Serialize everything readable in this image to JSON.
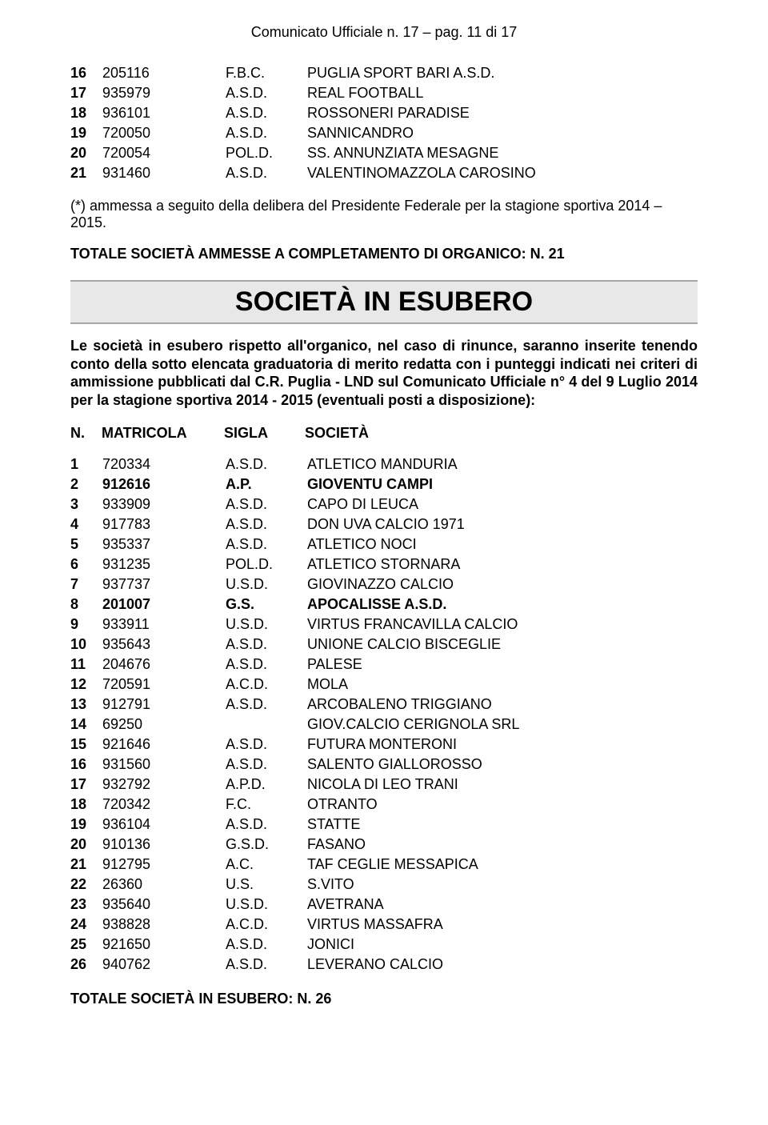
{
  "page_header": "Comunicato Ufficiale n. 17 – pag. 11 di 17",
  "top_rows": [
    {
      "n": "16",
      "mat": "205116",
      "sig": "F.B.C.",
      "soc": "PUGLIA SPORT BARI A.S.D."
    },
    {
      "n": "17",
      "mat": "935979",
      "sig": "A.S.D.",
      "soc": "REAL FOOTBALL"
    },
    {
      "n": "18",
      "mat": "936101",
      "sig": "A.S.D.",
      "soc": "ROSSONERI PARADISE"
    },
    {
      "n": "19",
      "mat": "720050",
      "sig": "A.S.D.",
      "soc": "SANNICANDRO"
    },
    {
      "n": "20",
      "mat": "720054",
      "sig": "POL.D.",
      "soc": "SS. ANNUNZIATA MESAGNE"
    },
    {
      "n": "21",
      "mat": "931460",
      "sig": "A.S.D.",
      "soc": "VALENTINOMAZZOLA CAROSINO"
    }
  ],
  "note": "(*) ammessa a seguito della delibera del Presidente Federale per la stagione sportiva 2014 – 2015.",
  "totale1": "TOTALE SOCIETÀ AMMESSE A COMPLETAMENTO DI ORGANICO: N. 21",
  "section_title": "SOCIETÀ IN ESUBERO",
  "intro": "Le società in esubero rispetto all'organico, nel caso di rinunce, saranno inserite tenendo conto della sotto elencata graduatoria di merito redatta con i punteggi indicati nei criteri di ammissione pubblicati dal C.R. Puglia - LND sul Comunicato Ufficiale n° 4 del 9 Luglio 2014 per la stagione sportiva 2014 - 2015 (eventuali posti a disposizione):",
  "headers": {
    "n": "N.",
    "mat": "MATRICOLA",
    "sig": "SIGLA",
    "soc": "SOCIETÀ"
  },
  "rows2": [
    {
      "n": "1",
      "mat": "720334",
      "sig": "A.S.D.",
      "soc": "ATLETICO MANDURIA",
      "bold": false
    },
    {
      "n": "2",
      "mat": "912616",
      "sig": "A.P.",
      "soc": "GIOVENTU CAMPI",
      "bold": true
    },
    {
      "n": "3",
      "mat": "933909",
      "sig": "A.S.D.",
      "soc": "CAPO DI LEUCA",
      "bold": false
    },
    {
      "n": "4",
      "mat": "917783",
      "sig": "A.S.D.",
      "soc": "DON UVA CALCIO 1971",
      "bold": false
    },
    {
      "n": "5",
      "mat": "935337",
      "sig": "A.S.D.",
      "soc": "ATLETICO NOCI",
      "bold": false
    },
    {
      "n": "6",
      "mat": "931235",
      "sig": "POL.D.",
      "soc": "ATLETICO STORNARA",
      "bold": false
    },
    {
      "n": "7",
      "mat": "937737",
      "sig": "U.S.D.",
      "soc": "GIOVINAZZO CALCIO",
      "bold": false
    },
    {
      "n": "8",
      "mat": "201007",
      "sig": "G.S.",
      "soc": "APOCALISSE A.S.D.",
      "bold": true
    },
    {
      "n": "9",
      "mat": "933911",
      "sig": "U.S.D.",
      "soc": "VIRTUS FRANCAVILLA CALCIO",
      "bold": false
    },
    {
      "n": "10",
      "mat": "935643",
      "sig": "A.S.D.",
      "soc": "UNIONE CALCIO BISCEGLIE",
      "bold": false
    },
    {
      "n": "11",
      "mat": "204676",
      "sig": "A.S.D.",
      "soc": "PALESE",
      "bold": false
    },
    {
      "n": "12",
      "mat": "720591",
      "sig": "A.C.D.",
      "soc": "MOLA",
      "bold": false
    },
    {
      "n": "13",
      "mat": "912791",
      "sig": "A.S.D.",
      "soc": "ARCOBALENO TRIGGIANO",
      "bold": false
    },
    {
      "n": "14",
      "mat": "69250",
      "sig": "",
      "soc": "GIOV.CALCIO CERIGNOLA SRL",
      "bold": false
    },
    {
      "n": "15",
      "mat": "921646",
      "sig": "A.S.D.",
      "soc": "FUTURA MONTERONI",
      "bold": false
    },
    {
      "n": "16",
      "mat": "931560",
      "sig": "A.S.D.",
      "soc": "SALENTO GIALLOROSSO",
      "bold": false
    },
    {
      "n": "17",
      "mat": "932792",
      "sig": "A.P.D.",
      "soc": "NICOLA DI LEO TRANI",
      "bold": false
    },
    {
      "n": "18",
      "mat": "720342",
      "sig": "F.C.",
      "soc": "OTRANTO",
      "bold": false
    },
    {
      "n": "19",
      "mat": "936104",
      "sig": "A.S.D.",
      "soc": "STATTE",
      "bold": false
    },
    {
      "n": "20",
      "mat": "910136",
      "sig": "G.S.D.",
      "soc": "FASANO",
      "bold": false
    },
    {
      "n": "21",
      "mat": "912795",
      "sig": "A.C.",
      "soc": "TAF CEGLIE MESSAPICA",
      "bold": false
    },
    {
      "n": "22",
      "mat": "26360",
      "sig": "U.S.",
      "soc": "S.VITO",
      "bold": false
    },
    {
      "n": "23",
      "mat": "935640",
      "sig": "U.S.D.",
      "soc": "AVETRANA",
      "bold": false
    },
    {
      "n": "24",
      "mat": "938828",
      "sig": "A.C.D.",
      "soc": "VIRTUS MASSAFRA",
      "bold": false
    },
    {
      "n": "25",
      "mat": "921650",
      "sig": "A.S.D.",
      "soc": "JONICI",
      "bold": false
    },
    {
      "n": "26",
      "mat": "940762",
      "sig": "A.S.D.",
      "soc": "LEVERANO CALCIO",
      "bold": false
    }
  ],
  "totale2": "TOTALE SOCIETÀ IN ESUBERO: N. 26"
}
